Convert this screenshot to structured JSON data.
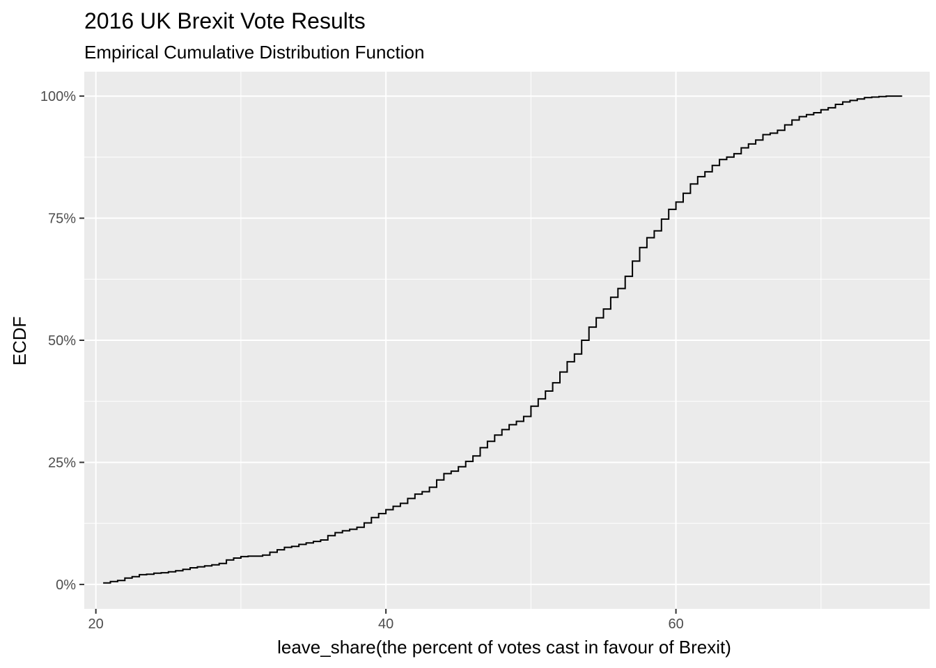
{
  "chart_data": {
    "type": "line",
    "step": true,
    "title": "2016 UK Brexit Vote Results",
    "subtitle": "Empirical Cumulative Distribution Function",
    "xlabel": "leave_share(the percent of votes cast in favour of Brexit)",
    "ylabel": "ECDF",
    "xlim": [
      19.2,
      77.5
    ],
    "ylim": [
      -0.05,
      1.05
    ],
    "x_ticks": [
      20,
      40,
      60
    ],
    "x_tick_labels": [
      "20",
      "40",
      "60"
    ],
    "x_minor_ticks": [
      30,
      50,
      70
    ],
    "y_ticks": [
      0,
      0.25,
      0.5,
      0.75,
      1.0
    ],
    "y_tick_labels": [
      "0%",
      "25%",
      "50%",
      "75%",
      "100%"
    ],
    "y_minor_ticks": [
      0.125,
      0.375,
      0.625,
      0.875
    ],
    "grid": true,
    "legend": "none",
    "colors": {
      "panel": "#ebebeb",
      "grid": "#ffffff",
      "line": "#000000",
      "tick_text": "#4d4d4d"
    },
    "series": [
      {
        "x": [
          20.5,
          21.0,
          21.5,
          22.0,
          22.5,
          23.0,
          23.5,
          24.0,
          24.5,
          25.0,
          25.5,
          26.0,
          26.5,
          27.0,
          27.5,
          28.0,
          28.5,
          29.0,
          29.5,
          30.0,
          30.5,
          31.0,
          31.5,
          32.0,
          32.5,
          33.0,
          33.5,
          34.0,
          34.5,
          35.0,
          35.5,
          36.0,
          36.5,
          37.0,
          37.5,
          38.0,
          38.5,
          39.0,
          39.5,
          40.0,
          40.5,
          41.0,
          41.5,
          42.0,
          42.5,
          43.0,
          43.5,
          44.0,
          44.5,
          45.0,
          45.5,
          46.0,
          46.5,
          47.0,
          47.5,
          48.0,
          48.5,
          49.0,
          49.5,
          50.0,
          50.5,
          51.0,
          51.5,
          52.0,
          52.5,
          53.0,
          53.5,
          54.0,
          54.5,
          55.0,
          55.5,
          56.0,
          56.5,
          57.0,
          57.5,
          58.0,
          58.5,
          59.0,
          59.5,
          60.0,
          60.5,
          61.0,
          61.5,
          62.0,
          62.5,
          63.0,
          63.5,
          64.0,
          64.5,
          65.0,
          65.5,
          66.0,
          66.5,
          67.0,
          67.5,
          68.0,
          68.5,
          69.0,
          69.5,
          70.0,
          70.5,
          71.0,
          71.5,
          72.0,
          72.5,
          73.0,
          73.5,
          74.0,
          74.5,
          75.0,
          75.6
        ],
        "y": [
          0.003,
          0.006,
          0.008,
          0.013,
          0.016,
          0.02,
          0.021,
          0.023,
          0.024,
          0.026,
          0.028,
          0.031,
          0.034,
          0.036,
          0.038,
          0.04,
          0.043,
          0.05,
          0.054,
          0.057,
          0.058,
          0.058,
          0.06,
          0.066,
          0.071,
          0.076,
          0.078,
          0.082,
          0.085,
          0.088,
          0.091,
          0.1,
          0.106,
          0.11,
          0.113,
          0.117,
          0.126,
          0.137,
          0.145,
          0.153,
          0.16,
          0.166,
          0.176,
          0.185,
          0.19,
          0.199,
          0.214,
          0.227,
          0.232,
          0.241,
          0.252,
          0.263,
          0.28,
          0.293,
          0.306,
          0.317,
          0.327,
          0.334,
          0.344,
          0.365,
          0.38,
          0.396,
          0.413,
          0.435,
          0.456,
          0.472,
          0.5,
          0.527,
          0.546,
          0.564,
          0.588,
          0.606,
          0.631,
          0.662,
          0.69,
          0.71,
          0.724,
          0.748,
          0.768,
          0.783,
          0.801,
          0.82,
          0.835,
          0.845,
          0.858,
          0.87,
          0.875,
          0.882,
          0.894,
          0.902,
          0.91,
          0.921,
          0.924,
          0.93,
          0.941,
          0.951,
          0.958,
          0.962,
          0.966,
          0.972,
          0.976,
          0.983,
          0.988,
          0.991,
          0.994,
          0.997,
          0.998,
          0.999,
          1.0,
          1.0,
          1.0
        ]
      }
    ]
  }
}
